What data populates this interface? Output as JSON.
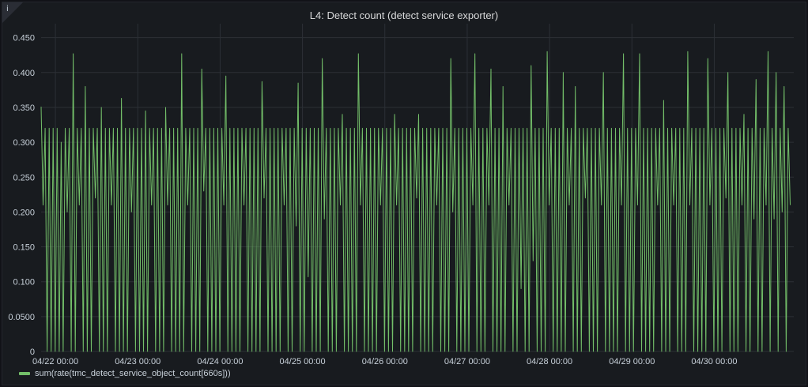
{
  "panel": {
    "title": "L4: Detect count (detect service exporter)",
    "info_icon": "info-icon"
  },
  "colors": {
    "series": "#73bf69",
    "grid": "#2c3036",
    "background": "#181b1f"
  },
  "chart_data": {
    "type": "line",
    "title": "L4: Detect count (detect service exporter)",
    "xlabel": "",
    "ylabel": "",
    "grid": true,
    "legend_placement": "bottom-left",
    "ylim": [
      0,
      0.47
    ],
    "y_ticks": [
      {
        "value": 0.45,
        "label": "0.450"
      },
      {
        "value": 0.4,
        "label": "0.400"
      },
      {
        "value": 0.35,
        "label": "0.350"
      },
      {
        "value": 0.3,
        "label": "0.300"
      },
      {
        "value": 0.25,
        "label": "0.250"
      },
      {
        "value": 0.2,
        "label": "0.200"
      },
      {
        "value": 0.15,
        "label": "0.150"
      },
      {
        "value": 0.1,
        "label": "0.100"
      },
      {
        "value": 0.05,
        "label": "0.0500"
      },
      {
        "value": 0,
        "label": "0"
      }
    ],
    "xlim": [
      "2024-04-21 19:50",
      "2024-04-30 23:10"
    ],
    "x_ticks": [
      {
        "value": "2024-04-22 00:00",
        "label": "04/22 00:00"
      },
      {
        "value": "2024-04-23 00:00",
        "label": "04/23 00:00"
      },
      {
        "value": "2024-04-24 00:00",
        "label": "04/24 00:00"
      },
      {
        "value": "2024-04-25 00:00",
        "label": "04/25 00:00"
      },
      {
        "value": "2024-04-26 00:00",
        "label": "04/26 00:00"
      },
      {
        "value": "2024-04-27 00:00",
        "label": "04/27 00:00"
      },
      {
        "value": "2024-04-28 00:00",
        "label": "04/28 00:00"
      },
      {
        "value": "2024-04-29 00:00",
        "label": "04/29 00:00"
      },
      {
        "value": "2024-04-30 00:00",
        "label": "04/30 00:00"
      }
    ],
    "series": [
      {
        "name": "sum(rate(tmc_detect_service_object_count[660s]))",
        "color": "#73bf69",
        "x_start": "2024-04-21 19:50",
        "x_step_minutes": 15,
        "values_pattern_note": "rapid oscillation between 0 and ~0.32 with spikes to ~0.43",
        "peaks": [
          0.351,
          0.32,
          0.32,
          0.32,
          0.32,
          0.3,
          0.32,
          0.32,
          0.427,
          0.32,
          0.32,
          0.38,
          0.32,
          0.32,
          0.32,
          0.35,
          0.32,
          0.32,
          0.32,
          0.32,
          0.363,
          0.32,
          0.32,
          0.32,
          0.32,
          0.32,
          0.345,
          0.32,
          0.32,
          0.32,
          0.32,
          0.35,
          0.32,
          0.32,
          0.32,
          0.427,
          0.32,
          0.32,
          0.32,
          0.32,
          0.405,
          0.32,
          0.32,
          0.32,
          0.32,
          0.32,
          0.395,
          0.32,
          0.32,
          0.32,
          0.32,
          0.32,
          0.32,
          0.32,
          0.32,
          0.387,
          0.32,
          0.32,
          0.32,
          0.32,
          0.32,
          0.32,
          0.32,
          0.32,
          0.385,
          0.32,
          0.32,
          0.32,
          0.32,
          0.32,
          0.42,
          0.32,
          0.32,
          0.32,
          0.32,
          0.34,
          0.32,
          0.32,
          0.32,
          0.427,
          0.32,
          0.32,
          0.32,
          0.32,
          0.32,
          0.32,
          0.32,
          0.32,
          0.34,
          0.32,
          0.32,
          0.32,
          0.32,
          0.32,
          0.34,
          0.32,
          0.32,
          0.32,
          0.32,
          0.32,
          0.32,
          0.32,
          0.42,
          0.32,
          0.32,
          0.32,
          0.32,
          0.32,
          0.427,
          0.32,
          0.32,
          0.32,
          0.405,
          0.32,
          0.32,
          0.38,
          0.32,
          0.32,
          0.32,
          0.32,
          0.32,
          0.32,
          0.41,
          0.32,
          0.32,
          0.32,
          0.43,
          0.32,
          0.32,
          0.32,
          0.4,
          0.32,
          0.32,
          0.38,
          0.32,
          0.32,
          0.32,
          0.32,
          0.32,
          0.32,
          0.4,
          0.32,
          0.32,
          0.32,
          0.32,
          0.427,
          0.32,
          0.32,
          0.32,
          0.427,
          0.32,
          0.32,
          0.32,
          0.32,
          0.32,
          0.36,
          0.32,
          0.32,
          0.32,
          0.32,
          0.32,
          0.43,
          0.32,
          0.32,
          0.32,
          0.32,
          0.42,
          0.32,
          0.32,
          0.32,
          0.32,
          0.4,
          0.32,
          0.32,
          0.32,
          0.34,
          0.32,
          0.32,
          0.39,
          0.32,
          0.32,
          0.43,
          0.32,
          0.4,
          0.32,
          0.38,
          0.32,
          0.415
        ],
        "troughs": [
          0.21,
          0.0,
          0.0,
          0.0,
          0.0,
          0.0,
          0.2,
          0.0,
          0.0,
          0.21,
          0.0,
          0.0,
          0.0,
          0.22,
          0.0,
          0.0,
          0.0,
          0.21,
          0.0,
          0.0,
          0.0,
          0.0,
          0.2,
          0.0,
          0.0,
          0.0,
          0.0,
          0.21,
          0.0,
          0.0,
          0.0,
          0.21,
          0.0,
          0.0,
          0.0,
          0.0,
          0.21,
          0.0,
          0.0,
          0.0,
          0.23,
          0.0,
          0.0,
          0.0,
          0.0,
          0.21,
          0.0,
          0.0,
          0.0,
          0.0,
          0.21,
          0.0,
          0.0,
          0.0,
          0.0,
          0.22,
          0.0,
          0.0,
          0.0,
          0.0,
          0.21,
          0.0,
          0.0,
          0.18,
          0.0,
          0.0,
          0.107,
          0.0,
          0.0,
          0.0,
          0.19,
          0.0,
          0.0,
          0.0,
          0.21,
          0.0,
          0.0,
          0.0,
          0.0,
          0.21,
          0.0,
          0.0,
          0.0,
          0.0,
          0.21,
          0.0,
          0.0,
          0.0,
          0.21,
          0.0,
          0.0,
          0.0,
          0.0,
          0.22,
          0.0,
          0.0,
          0.0,
          0.0,
          0.21,
          0.0,
          0.0,
          0.0,
          0.2,
          0.0,
          0.0,
          0.0,
          0.0,
          0.21,
          0.0,
          0.0,
          0.0,
          0.21,
          0.0,
          0.0,
          0.0,
          0.0,
          0.21,
          0.0,
          0.0,
          0.09,
          0.0,
          0.0,
          0.13,
          0.0,
          0.0,
          0.0,
          0.21,
          0.0,
          0.0,
          0.0,
          0.0,
          0.21,
          0.0,
          0.0,
          0.0,
          0.22,
          0.0,
          0.0,
          0.0,
          0.21,
          0.0,
          0.0,
          0.0,
          0.0,
          0.21,
          0.0,
          0.0,
          0.0,
          0.21,
          0.0,
          0.0,
          0.0,
          0.0,
          0.21,
          0.0,
          0.0,
          0.0,
          0.21,
          0.0,
          0.0,
          0.0,
          0.21,
          0.0,
          0.0,
          0.0,
          0.0,
          0.21,
          0.0,
          0.0,
          0.0,
          0.22,
          0.0,
          0.0,
          0.0,
          0.21,
          0.0,
          0.0,
          0.19,
          0.0,
          0.0,
          0.21,
          0.0,
          0.19,
          0.0,
          0.2,
          0.0,
          0.21
        ]
      }
    ]
  },
  "legend": {
    "label": "sum(rate(tmc_detect_service_object_count[660s]))"
  }
}
